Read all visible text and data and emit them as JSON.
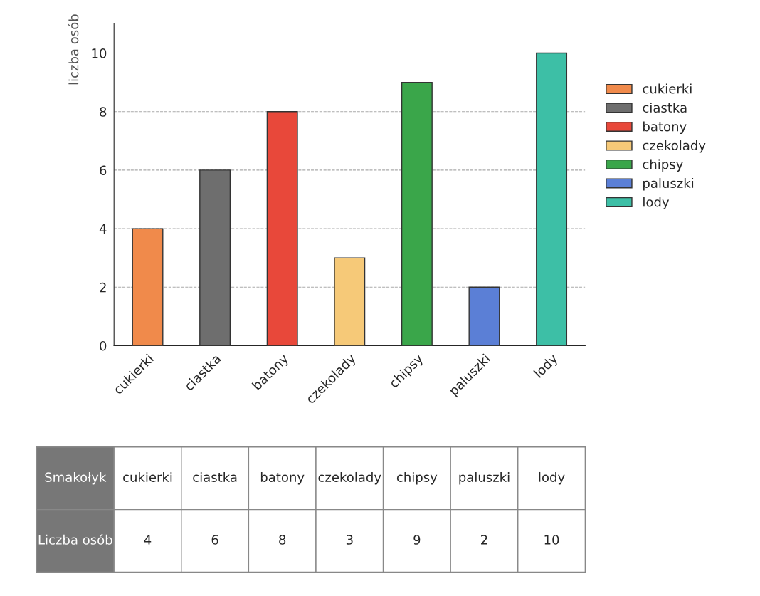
{
  "chart_data": [
    {
      "type": "bar",
      "ylabel": "liczba osób",
      "categories": [
        "cukierki",
        "ciastka",
        "batony",
        "czekolady",
        "chipsy",
        "paluszki",
        "lody"
      ],
      "series": [
        {
          "name": "cukierki",
          "color": "#f08a4b",
          "values": [
            4,
            null,
            null,
            null,
            null,
            null,
            null
          ]
        },
        {
          "name": "ciastka",
          "color": "#6e6e6e",
          "values": [
            null,
            6,
            null,
            null,
            null,
            null,
            null
          ]
        },
        {
          "name": "batony",
          "color": "#e8483a",
          "values": [
            null,
            null,
            8,
            null,
            null,
            null,
            null
          ]
        },
        {
          "name": "czekolady",
          "color": "#f6c978",
          "values": [
            null,
            null,
            null,
            3,
            null,
            null,
            null
          ]
        },
        {
          "name": "chipsy",
          "color": "#3aa64a",
          "values": [
            null,
            null,
            null,
            null,
            9,
            null,
            null
          ]
        },
        {
          "name": "paluszki",
          "color": "#5b7fd6",
          "values": [
            null,
            null,
            null,
            null,
            null,
            2,
            null
          ]
        },
        {
          "name": "lody",
          "color": "#3dbfa6",
          "values": [
            null,
            null,
            null,
            null,
            null,
            null,
            10
          ]
        }
      ],
      "stacked": true,
      "ylim": [
        0,
        11
      ],
      "yticks": [
        0,
        2,
        4,
        6,
        8,
        10
      ],
      "grid": "y",
      "legend": "right"
    },
    {
      "type": "other",
      "annotations": [
        "Smakołyk",
        "cukierki",
        "ciastka",
        "batony",
        "czekolady",
        "chipsy",
        "paluszki",
        "lody",
        "Liczba osób",
        "4",
        "6",
        "8",
        "3",
        "9",
        "2",
        "10"
      ]
    }
  ]
}
